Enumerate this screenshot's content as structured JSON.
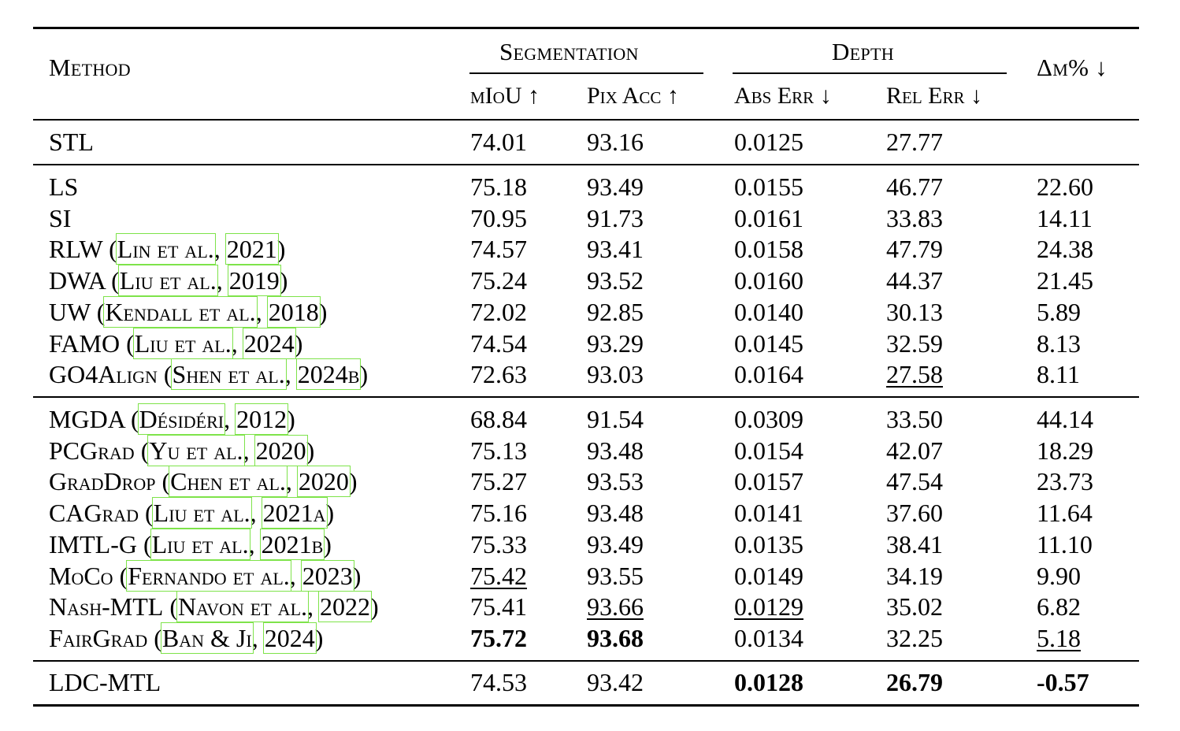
{
  "header": {
    "method": "Method",
    "segmentation": "Segmentation",
    "depth": "Depth",
    "delta": "Δm% ↓",
    "miou": "mIoU ↑",
    "pix_acc": "Pix Acc ↑",
    "abs_err": "Abs Err ↓",
    "rel_err": "Rel Err ↓"
  },
  "stl": {
    "method": "STL",
    "miou": "74.01",
    "pix": "93.16",
    "abs": "0.0125",
    "rel": "27.77",
    "delta": ""
  },
  "group1": [
    {
      "name": "LS",
      "author": "",
      "year": "",
      "miou": "75.18",
      "pix": "93.49",
      "abs": "0.0155",
      "rel": "46.77",
      "delta": "22.60"
    },
    {
      "name": "SI",
      "author": "",
      "year": "",
      "miou": "70.95",
      "pix": "91.73",
      "abs": "0.0161",
      "rel": "33.83",
      "delta": "14.11"
    },
    {
      "name": "RLW",
      "author": "Lin et al.",
      "year": "2021",
      "miou": "74.57",
      "pix": "93.41",
      "abs": "0.0158",
      "rel": "47.79",
      "delta": "24.38"
    },
    {
      "name": "DWA",
      "author": "Liu et al.",
      "year": "2019",
      "miou": "75.24",
      "pix": "93.52",
      "abs": "0.0160",
      "rel": "44.37",
      "delta": "21.45"
    },
    {
      "name": "UW",
      "author": "Kendall et al.",
      "year": "2018",
      "miou": "72.02",
      "pix": "92.85",
      "abs": "0.0140",
      "rel": "30.13",
      "delta": "5.89"
    },
    {
      "name": "FAMO",
      "author": "Liu et al.",
      "year": "2024",
      "miou": "74.54",
      "pix": "93.29",
      "abs": "0.0145",
      "rel": "32.59",
      "delta": "8.13"
    },
    {
      "name": "GO4Align",
      "author": "Shen et al.",
      "year": "2024b",
      "miou": "72.63",
      "pix": "93.03",
      "abs": "0.0164",
      "rel": "27.58",
      "delta": "8.11"
    }
  ],
  "group2": [
    {
      "name": "MGDA",
      "author": "Désidéri",
      "year": "2012",
      "miou": "68.84",
      "pix": "91.54",
      "abs": "0.0309",
      "rel": "33.50",
      "delta": "44.14"
    },
    {
      "name": "PCGrad",
      "author": "Yu et al.",
      "year": "2020",
      "miou": "75.13",
      "pix": "93.48",
      "abs": "0.0154",
      "rel": "42.07",
      "delta": "18.29"
    },
    {
      "name": "GradDrop",
      "author": "Chen et al.",
      "year": "2020",
      "miou": "75.27",
      "pix": "93.53",
      "abs": "0.0157",
      "rel": "47.54",
      "delta": "23.73"
    },
    {
      "name": "CAGrad",
      "author": "Liu et al.",
      "year": "2021a",
      "miou": "75.16",
      "pix": "93.48",
      "abs": "0.0141",
      "rel": "37.60",
      "delta": "11.64"
    },
    {
      "name": "IMTL-G",
      "author": "Liu et al.",
      "year": "2021b",
      "miou": "75.33",
      "pix": "93.49",
      "abs": "0.0135",
      "rel": "38.41",
      "delta": "11.10"
    },
    {
      "name": "MoCo",
      "author": "Fernando et al.",
      "year": "2023",
      "miou": "75.42",
      "pix": "93.55",
      "abs": "0.0149",
      "rel": "34.19",
      "delta": "9.90"
    },
    {
      "name": "Nash-MTL",
      "author": "Navon et al.",
      "year": "2022",
      "miou": "75.41",
      "pix": "93.66",
      "abs": "0.0129",
      "rel": "35.02",
      "delta": "6.82"
    },
    {
      "name": "FairGrad",
      "author": "Ban & Ji",
      "year": "2024",
      "miou": "75.72",
      "pix": "93.68",
      "abs": "0.0134",
      "rel": "32.25",
      "delta": "5.18"
    }
  ],
  "ours": {
    "method": "LDC-MTL",
    "miou": "74.53",
    "pix": "93.42",
    "abs": "0.0128",
    "rel": "26.79",
    "delta": "-0.57"
  },
  "emphasis": {
    "best_bold": [
      "FairGrad.miou",
      "FairGrad.pix",
      "LDC-MTL.abs",
      "LDC-MTL.rel",
      "LDC-MTL.delta"
    ],
    "second_underlined": [
      "MoCo.miou",
      "Nash-MTL.pix",
      "Nash-MTL.abs",
      "GO4Align.rel",
      "FairGrad.delta"
    ]
  },
  "colors": {
    "citation_box": "#7ee34a",
    "rules": "#000000"
  }
}
